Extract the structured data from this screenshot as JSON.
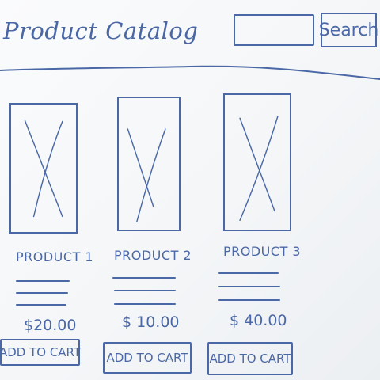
{
  "header": {
    "title": "Product Catalog",
    "search": {
      "value": "",
      "placeholder": ""
    },
    "search_button_label": "Search"
  },
  "products": [
    {
      "name": "PRODUCT 1",
      "price": "$20.00",
      "add_to_cart_label": "ADD TO CART",
      "image_icon": "image-placeholder-icon"
    },
    {
      "name": "PRODUCT 2",
      "price": "$ 10.00",
      "add_to_cart_label": "ADD TO CART",
      "image_icon": "image-placeholder-icon"
    },
    {
      "name": "PRODUCT 3",
      "price": "$ 40.00",
      "add_to_cart_label": "ADD TO CART",
      "image_icon": "image-placeholder-icon"
    }
  ],
  "colors": {
    "ink": "#4b68a6",
    "paper": "#f6f8fa"
  }
}
